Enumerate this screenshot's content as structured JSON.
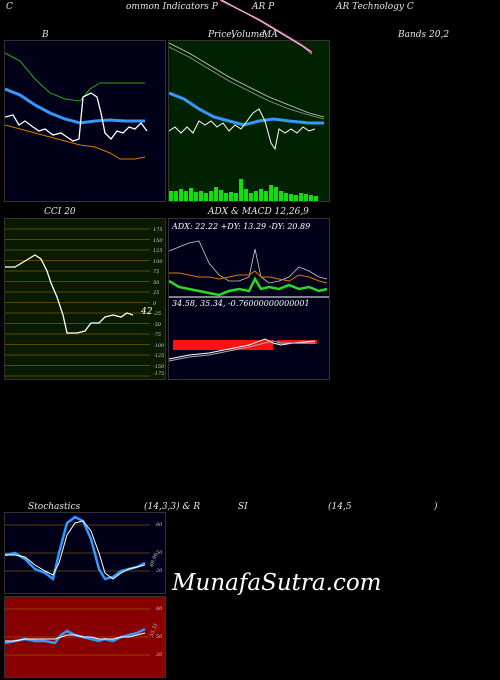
{
  "header": {
    "part1": "C",
    "part2": "ommon  Indicators P",
    "part3": "AR P",
    "part4": "AR Technology C"
  },
  "panel_titles": {
    "bands_left": "B",
    "price_label": "Price,",
    "volume_label": "Volume,",
    "ma_label": "MA",
    "bands_right": "Bands 20,2",
    "cci": "CCI 20",
    "adx_macd": "ADX  & MACD 12,26,9",
    "stoch_left": "Stochastics",
    "stoch_params": "(14,3,3) & R",
    "stoch_si": "SI",
    "stoch_rsi": "(14,5",
    "stoch_paren": ")"
  },
  "cci": {
    "value": "42",
    "axis": [
      "175",
      "150",
      "125",
      "100",
      "75",
      "50",
      "25",
      "0",
      "-25",
      "-50",
      "-75",
      "-100",
      "-125",
      "-150",
      "-175"
    ]
  },
  "adx": {
    "readout": "ADX: 22.22  +DY: 13.29 -DY: 20.89"
  },
  "macd": {
    "readout": "34.58,  35.34,  -0.76000000000001"
  },
  "stochastics": {
    "axis": [
      "80",
      "50",
      "20"
    ],
    "value_label": "69.96"
  },
  "rsi": {
    "axis": [
      "80",
      "50",
      "20"
    ],
    "value_label": "55.31"
  },
  "watermark": "MunafaSutra.com",
  "colors": {
    "bands_bg": "#000018",
    "price_bg": "#002200",
    "cci_bg": "#0a1a00",
    "adx_bg": "#00001a",
    "stoch_bg": "#000018",
    "rsi_bg": "#880000",
    "blue_line": "#3399ff",
    "green_line": "#22dd22",
    "orange_line": "#dd7700",
    "volume_bars": "#11dd11",
    "macd_bars": "#ff1111"
  }
}
